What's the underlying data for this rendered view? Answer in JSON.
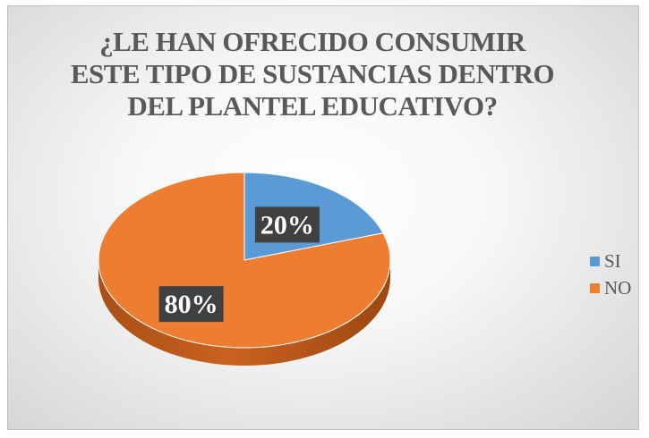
{
  "chart_data": {
    "type": "pie",
    "title": "¿LE HAN OFRECIDO CONSUMIR ESTE TIPO DE SUSTANCIAS DENTRO DEL PLANTEL EDUCATIVO?",
    "categories": [
      "SI",
      "NO"
    ],
    "values": [
      20,
      80
    ],
    "data_labels": [
      "20%",
      "80%"
    ],
    "colors": [
      "#5B9BD5",
      "#ED7D31"
    ],
    "style": "3d",
    "legend_position": "right"
  }
}
